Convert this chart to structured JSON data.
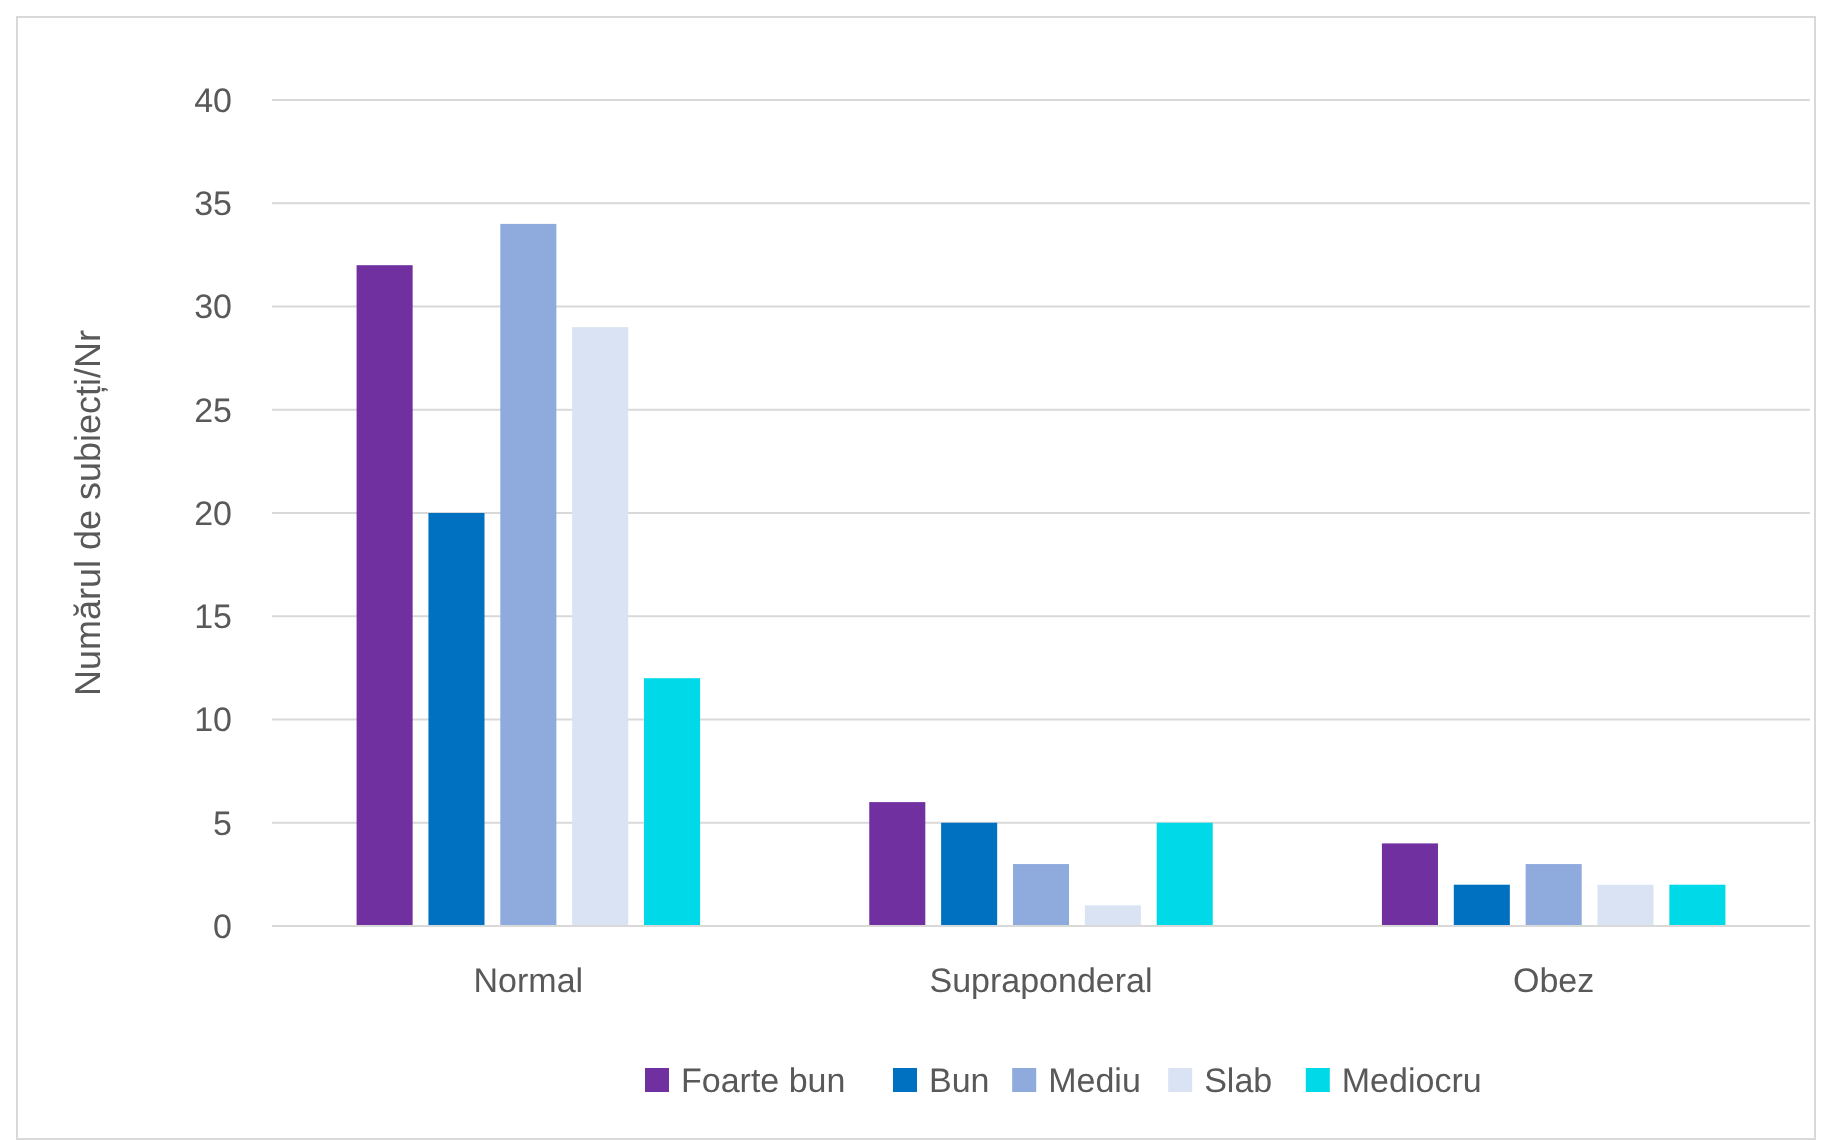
{
  "chart_data": {
    "type": "bar",
    "ylabel": "Numărul de subiecți/Nr",
    "categories": [
      "Normal",
      "Supraponderal",
      "Obez"
    ],
    "series": [
      {
        "name": "Foarte bun",
        "color": "#7030a0",
        "values": [
          32,
          6,
          4
        ]
      },
      {
        "name": "Bun",
        "color": "#0070c0",
        "values": [
          20,
          5,
          2
        ]
      },
      {
        "name": "Mediu",
        "color": "#8faadc",
        "values": [
          34,
          3,
          3
        ]
      },
      {
        "name": "Slab",
        "color": "#dae3f3",
        "values": [
          29,
          1,
          2
        ]
      },
      {
        "name": "Mediocru",
        "color": "#00dae8",
        "values": [
          12,
          5,
          2
        ]
      }
    ],
    "ylim": [
      0,
      40
    ],
    "yticks": [
      0,
      5,
      10,
      15,
      20,
      25,
      30,
      35,
      40
    ],
    "grid": "y",
    "legend": "bottom"
  }
}
